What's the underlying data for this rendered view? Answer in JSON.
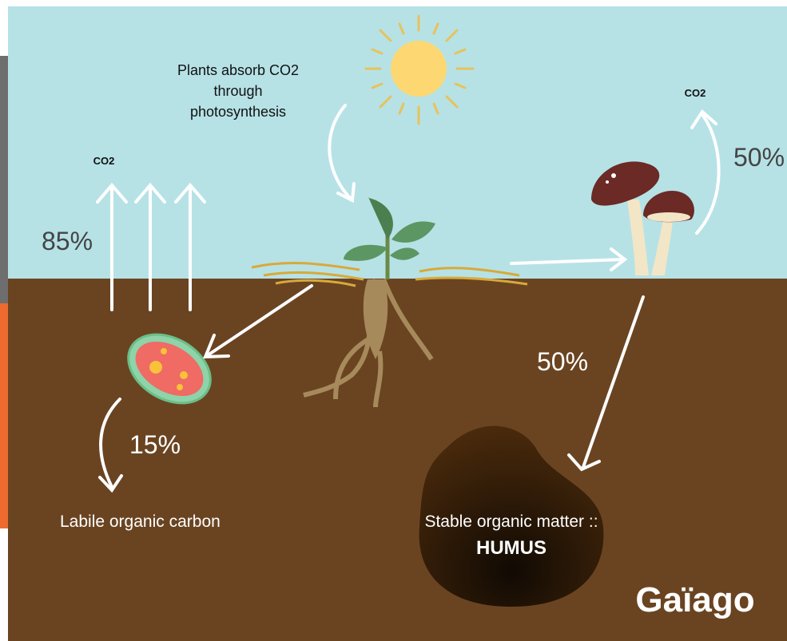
{
  "diagram": {
    "photosynthesis_note": [
      "Plants absorb CO2",
      "through",
      "photosynthesis"
    ],
    "co2_left": "CO2",
    "co2_right": "CO2",
    "release_left": "85%",
    "release_mushroom": "50%",
    "to_humus": "50%",
    "to_labile": "15%",
    "labile_label": "Labile organic carbon",
    "stable_label": "Stable organic matter ::",
    "humus_label": "HUMUS",
    "logo": "Gaïago"
  }
}
